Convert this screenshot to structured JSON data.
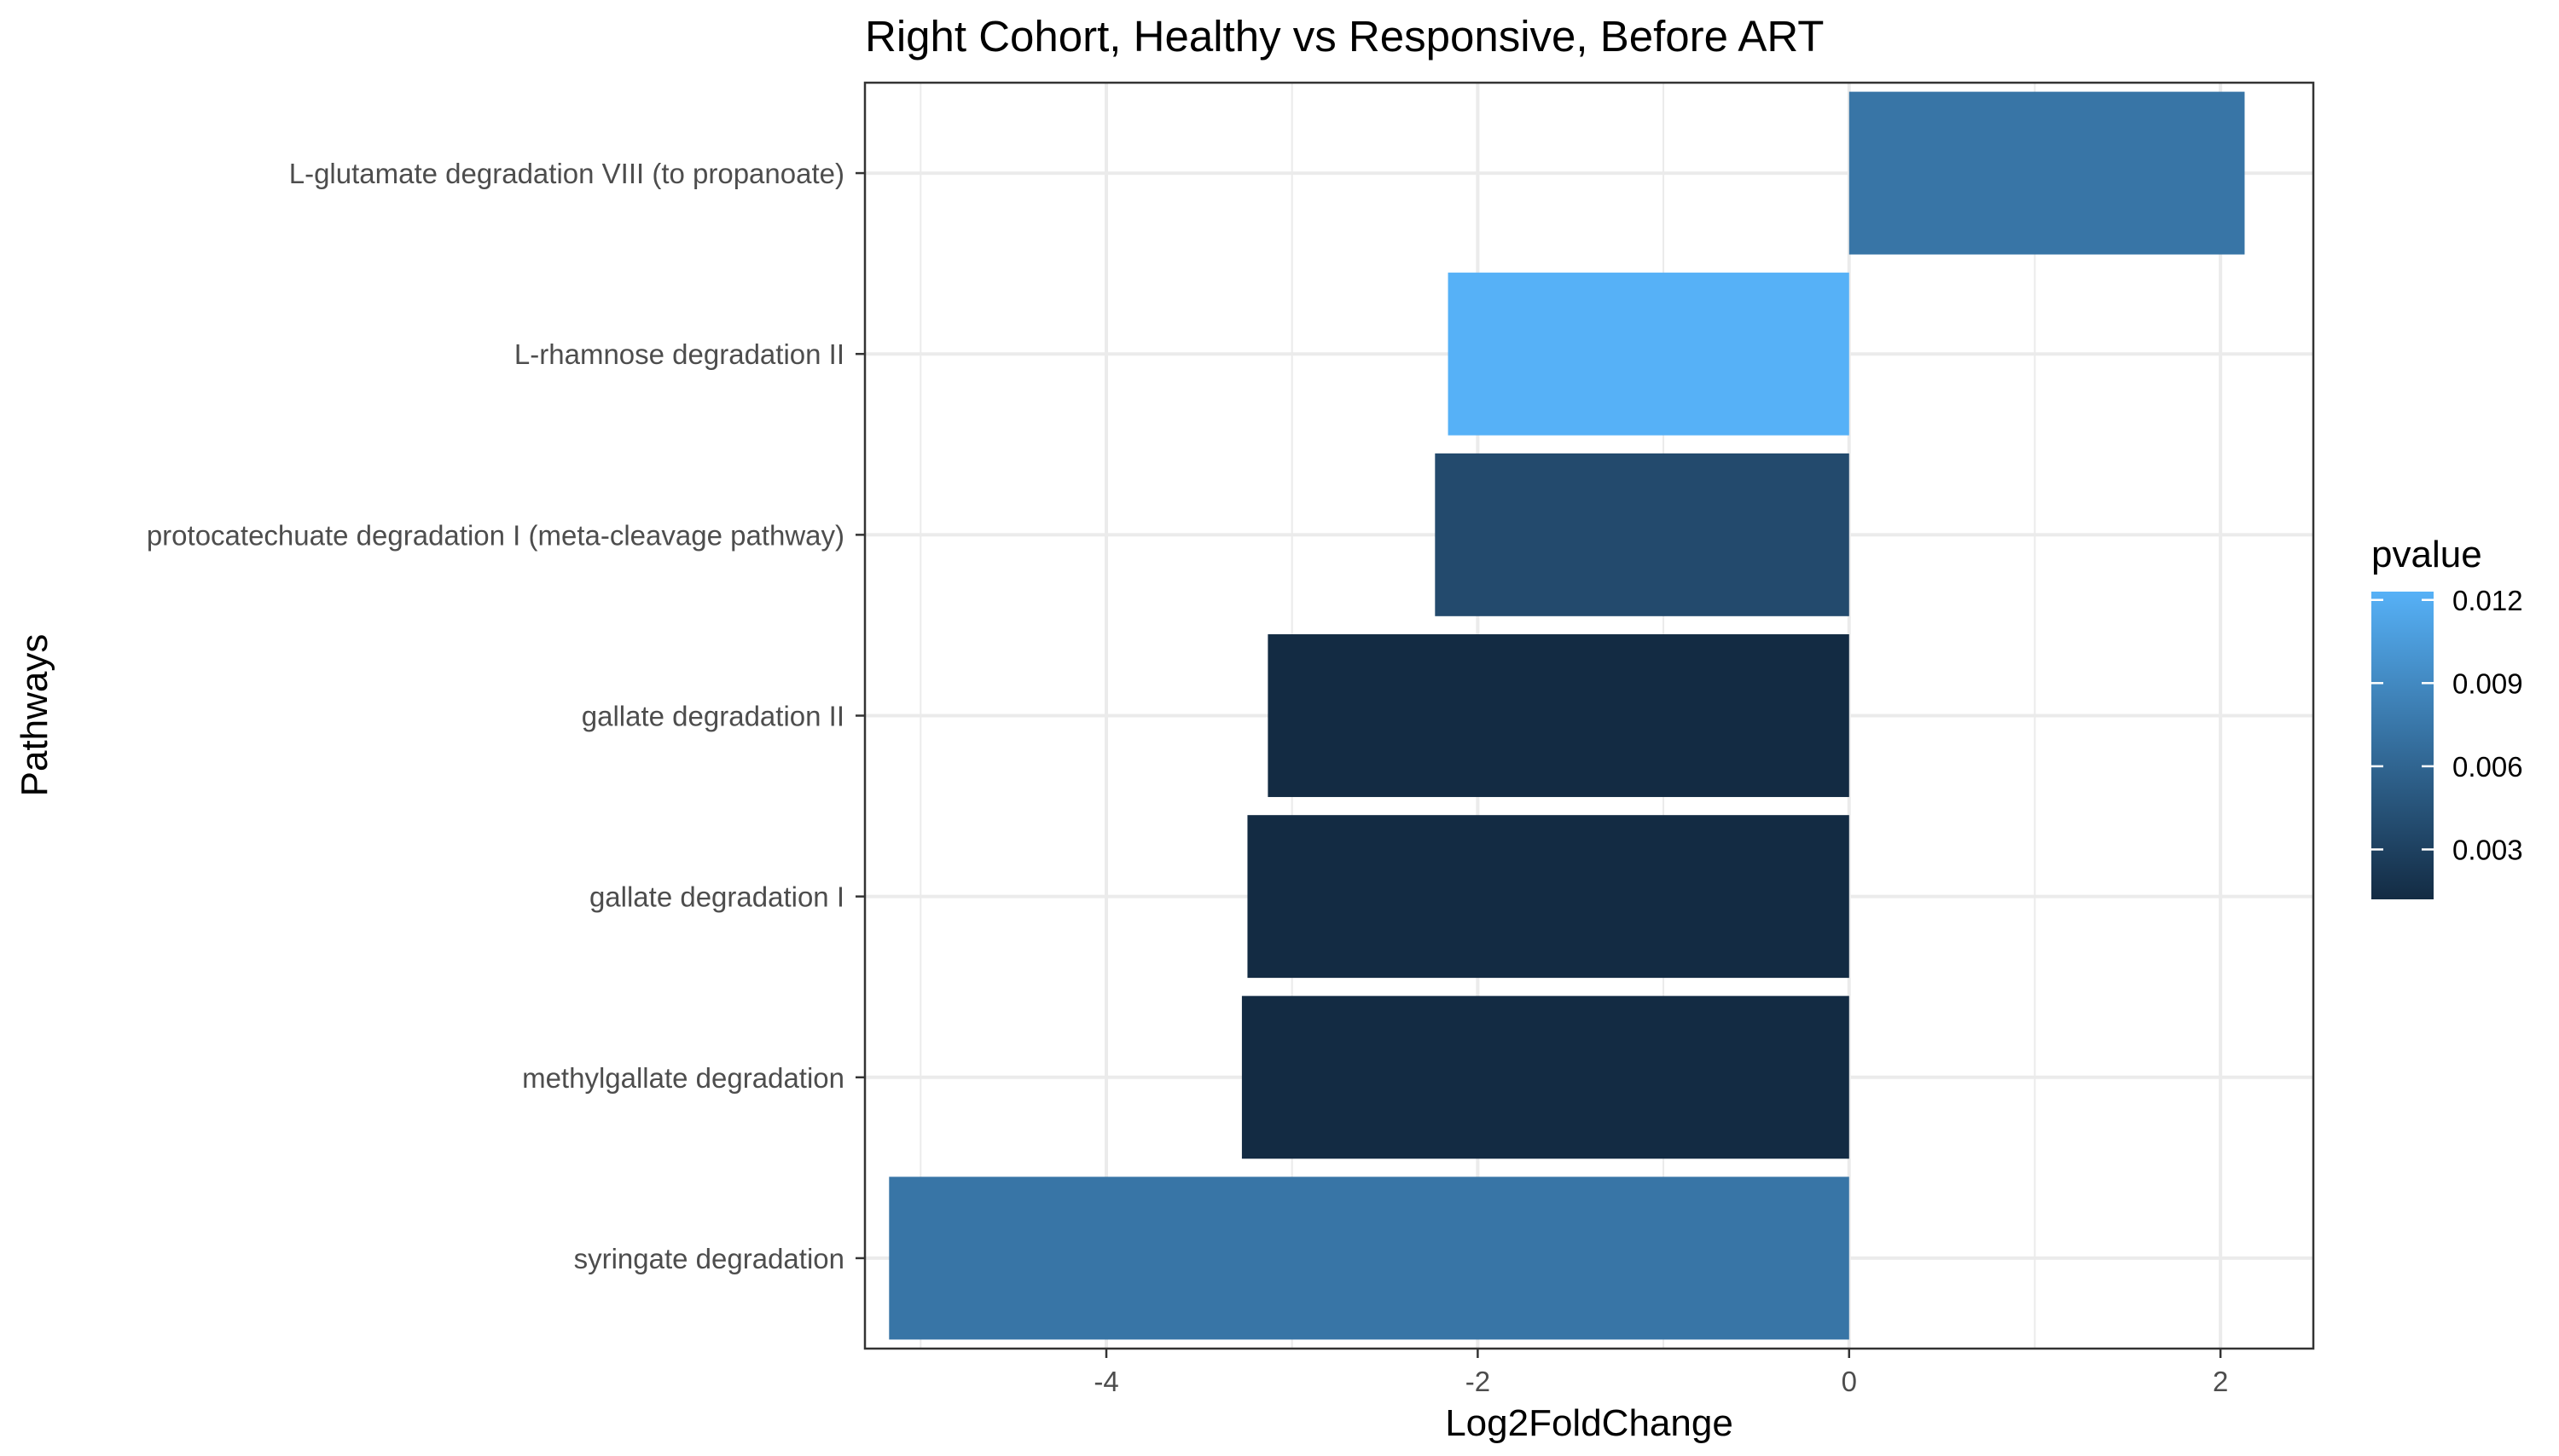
{
  "chart_data": {
    "type": "bar",
    "orientation": "horizontal",
    "title": "Right Cohort, Healthy vs Responsive, Before ART",
    "xlabel": "Log2FoldChange",
    "ylabel": "Pathways",
    "xlim": [
      -5.3,
      2.5
    ],
    "x_ticks": [
      -4,
      -2,
      0,
      2
    ],
    "x_tick_labels": [
      "-4",
      "-2",
      "0",
      "2"
    ],
    "grid": true,
    "categories": [
      "L-glutamate degradation VIII (to propanoate)",
      "L-rhamnose degradation II",
      "protocatechuate degradation I (meta-cleavage pathway)",
      "gallate degradation II",
      "gallate degradation I",
      "methylgallate degradation",
      "syringate degradation"
    ],
    "values": [
      2.13,
      -2.16,
      -2.23,
      -3.13,
      -3.24,
      -3.27,
      -5.17
    ],
    "pvalues": [
      0.0073,
      0.0123,
      0.0038,
      0.0012,
      0.0012,
      0.0012,
      0.0073
    ],
    "legend": {
      "title": "pvalue",
      "placement": "right",
      "min": 0.0012,
      "max": 0.0123,
      "ticks": [
        0.003,
        0.006,
        0.009,
        0.012
      ],
      "tick_labels": [
        "0.003",
        "0.006",
        "0.009",
        "0.012"
      ],
      "color_low": "#132b43",
      "color_high": "#56b1f7"
    }
  }
}
